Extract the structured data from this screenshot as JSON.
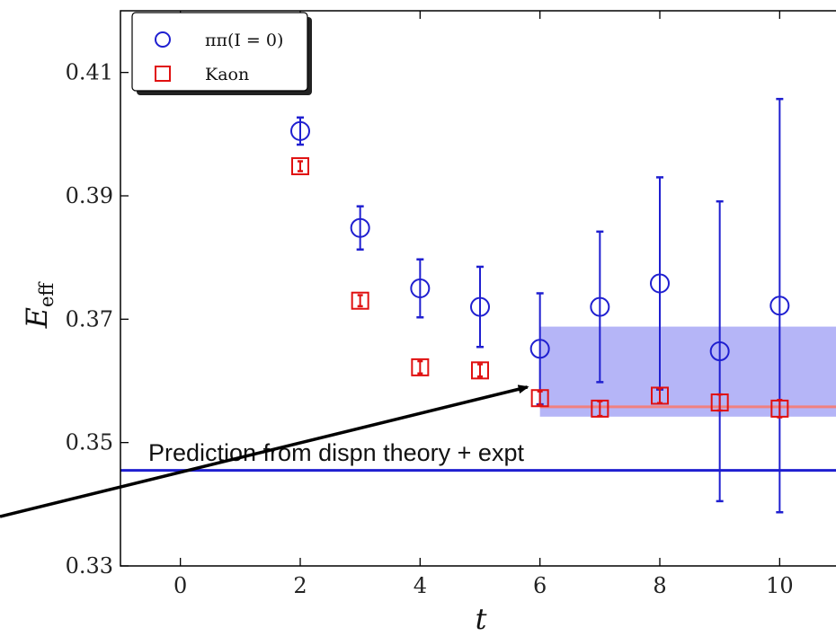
{
  "chart_data": {
    "type": "scatter",
    "title": "",
    "xlabel": "t",
    "ylabel": "E",
    "ylabel_sub": "eff",
    "xlim": [
      -1,
      11
    ],
    "ylim": [
      0.33,
      0.42
    ],
    "x_ticks": [
      0,
      2,
      4,
      6,
      8,
      10
    ],
    "x_tick_labels": [
      "0",
      "2",
      "4",
      "6",
      "8",
      "10"
    ],
    "y_ticks": [
      0.33,
      0.35,
      0.37,
      0.39,
      0.41
    ],
    "y_tick_labels": [
      "0.33",
      "0.35",
      "0.37",
      "0.39",
      "0.41"
    ],
    "grid": false,
    "legend_position": "top-left",
    "series": [
      {
        "name": "ππ(I = 0)",
        "marker": "circle",
        "color": "#1f1fd0",
        "points": [
          {
            "x": 2,
            "y": 0.4005,
            "err": 0.0022
          },
          {
            "x": 3,
            "y": 0.3848,
            "err": 0.0035
          },
          {
            "x": 4,
            "y": 0.375,
            "err": 0.0047
          },
          {
            "x": 5,
            "y": 0.372,
            "err": 0.0065
          },
          {
            "x": 6,
            "y": 0.3652,
            "err": 0.009
          },
          {
            "x": 7,
            "y": 0.372,
            "err": 0.0122
          },
          {
            "x": 8,
            "y": 0.3758,
            "err": 0.0172
          },
          {
            "x": 9,
            "y": 0.3648,
            "err": 0.0243
          },
          {
            "x": 10,
            "y": 0.3722,
            "err": 0.0335
          }
        ]
      },
      {
        "name": "Kaon",
        "marker": "square",
        "color": "#e01010",
        "points": [
          {
            "x": 2,
            "y": 0.3948,
            "err": 0.0008
          },
          {
            "x": 3,
            "y": 0.373,
            "err": 0.0009
          },
          {
            "x": 4,
            "y": 0.3622,
            "err": 0.001
          },
          {
            "x": 5,
            "y": 0.3617,
            "err": 0.001
          },
          {
            "x": 6,
            "y": 0.3572,
            "err": 0.0011
          },
          {
            "x": 7,
            "y": 0.3555,
            "err": 0.0012
          },
          {
            "x": 8,
            "y": 0.3576,
            "err": 0.0012
          },
          {
            "x": 9,
            "y": 0.3565,
            "err": 0.0013
          },
          {
            "x": 10,
            "y": 0.3555,
            "err": 0.0014
          }
        ]
      }
    ],
    "fit_band": {
      "x_start": 6,
      "y_low": 0.3542,
      "y_high": 0.3688,
      "color": "#7878f0"
    },
    "kaon_fit_line": {
      "x_start": 6,
      "y": 0.3558,
      "color": "#f08080"
    },
    "reference_line": {
      "y": 0.3455,
      "color": "#1f1fd0",
      "label": "Prediction from dispn theory + expt"
    },
    "annotation_arrow": {
      "label": "",
      "x_end": 6,
      "y_end": 0.359
    }
  }
}
